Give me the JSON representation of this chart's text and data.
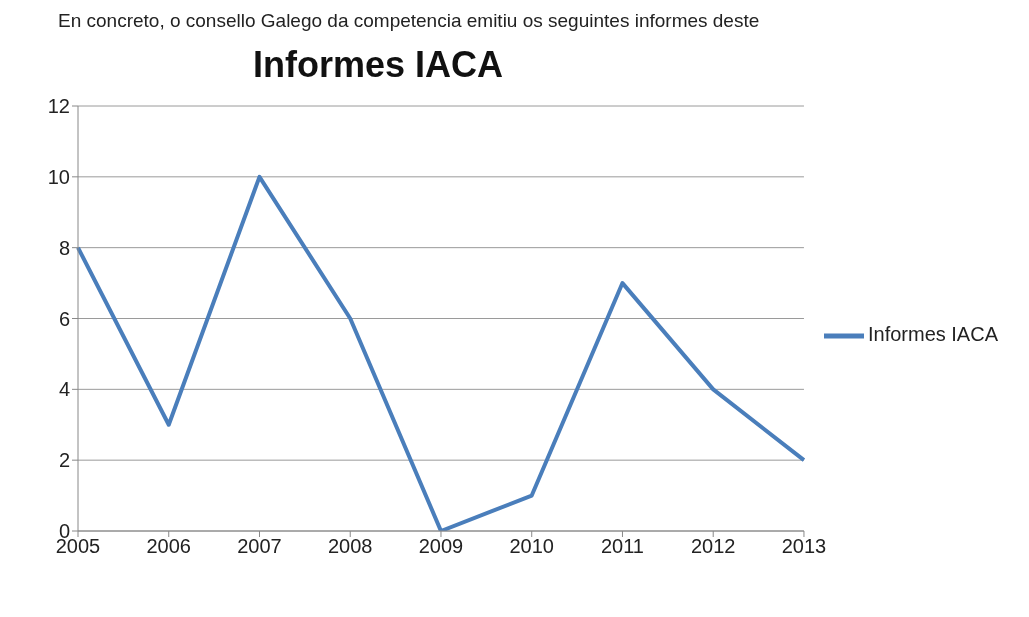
{
  "chart_data": {
    "type": "line",
    "title": "Informes IACA",
    "annotations": [
      "En concreto, o consello Galego da competencia emitiu os seguintes informes deste"
    ],
    "categories": [
      "2005",
      "2006",
      "2007",
      "2008",
      "2009",
      "2010",
      "2011",
      "2012",
      "2013"
    ],
    "series": [
      {
        "name": "Informes IACA",
        "color": "#4a7ebb",
        "values": [
          8,
          3,
          10,
          6,
          0,
          1,
          7,
          4,
          2
        ]
      }
    ],
    "ylim": [
      0,
      12
    ],
    "yticks": [
      0,
      2,
      4,
      6,
      8,
      10,
      12
    ],
    "grid": "y",
    "legend": "right",
    "marker": "none",
    "line_style": "solid"
  }
}
